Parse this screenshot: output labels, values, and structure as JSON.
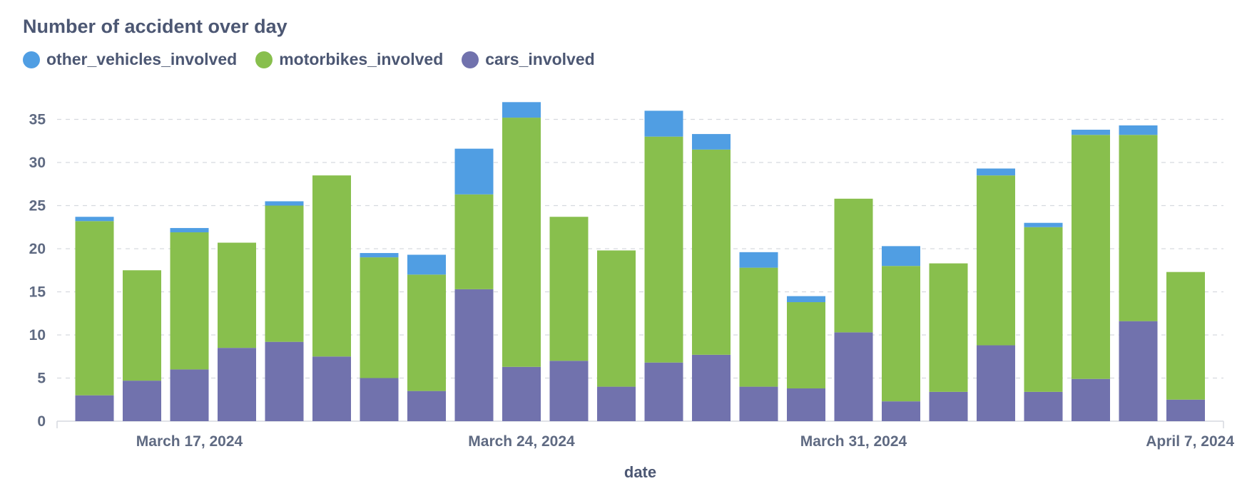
{
  "chart_data": {
    "type": "bar",
    "stacked": true,
    "title": "Number of accident over day",
    "xlabel": "date",
    "ylabel": "",
    "ylim": [
      0,
      37
    ],
    "yticks": [
      0,
      5,
      10,
      15,
      20,
      25,
      30,
      35
    ],
    "grid": "horizontal-dashed",
    "legend_position": "top-left",
    "x": [
      "2024-03-15",
      "2024-03-16",
      "2024-03-17",
      "2024-03-18",
      "2024-03-19",
      "2024-03-20",
      "2024-03-21",
      "2024-03-22",
      "2024-03-23",
      "2024-03-24",
      "2024-03-25",
      "2024-03-26",
      "2024-03-27",
      "2024-03-28",
      "2024-03-29",
      "2024-03-30",
      "2024-03-31",
      "2024-04-01",
      "2024-04-02",
      "2024-04-03",
      "2024-04-04",
      "2024-04-05",
      "2024-04-06",
      "2024-04-07"
    ],
    "x_ticks": [
      {
        "date": "2024-03-17",
        "label": "March 17, 2024"
      },
      {
        "date": "2024-03-24",
        "label": "March 24, 2024"
      },
      {
        "date": "2024-03-31",
        "label": "March 31, 2024"
      },
      {
        "date": "2024-04-07",
        "label": "April 7, 2024"
      }
    ],
    "series": [
      {
        "name": "cars_involved",
        "color": "#7172ad",
        "values": [
          3,
          4.7,
          6,
          8.5,
          9.2,
          7.5,
          5,
          3.5,
          15.3,
          6.3,
          7,
          4,
          6.8,
          7.7,
          4,
          3.8,
          10.3,
          2.3,
          3.4,
          8.8,
          3.4,
          4.9,
          11.6,
          2.5
        ]
      },
      {
        "name": "motorbikes_involved",
        "color": "#88bf4d",
        "values": [
          20.2,
          12.8,
          15.9,
          12.2,
          15.8,
          21,
          14,
          13.5,
          11,
          28.9,
          16.7,
          15.8,
          26.2,
          23.8,
          13.8,
          10,
          15.5,
          15.7,
          14.9,
          19.7,
          19.1,
          28.3,
          21.6,
          14.8
        ]
      },
      {
        "name": "other_vehicles_involved",
        "color": "#509ee3",
        "values": [
          0.5,
          0,
          0.5,
          0,
          0.5,
          0,
          0.5,
          2.3,
          5.3,
          1.8,
          0,
          0,
          3,
          1.8,
          1.8,
          0.7,
          0,
          2.3,
          0,
          0.8,
          0.5,
          0.6,
          1.1,
          0
        ]
      }
    ],
    "legend_order": [
      "other_vehicles_involved",
      "motorbikes_involved",
      "cars_involved"
    ]
  }
}
